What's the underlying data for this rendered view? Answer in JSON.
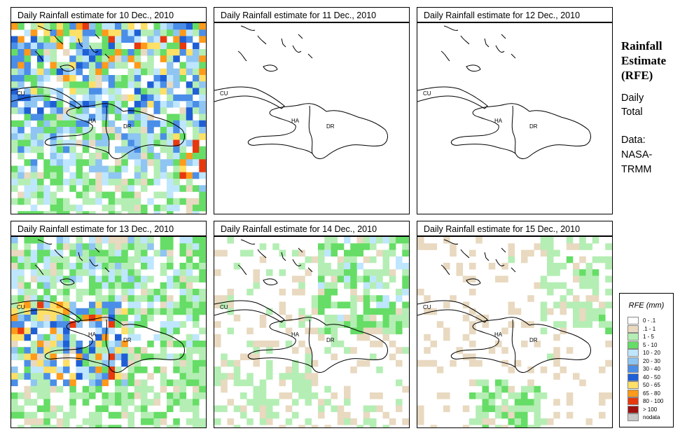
{
  "panels": [
    {
      "title": "Daily Rainfall estimate for  10 Dec., 2010",
      "intensity": 0.95,
      "seed": 11,
      "profile": "wet-north"
    },
    {
      "title": "Daily Rainfall estimate for  11 Dec., 2010",
      "intensity": 0.22,
      "seed": 23,
      "profile": "sparse-south"
    },
    {
      "title": "Daily Rainfall estimate for  12 Dec., 2010",
      "intensity": 0.08,
      "seed": 37,
      "profile": "sparse"
    },
    {
      "title": "Daily Rainfall estimate for  13 Dec., 2010",
      "intensity": 0.75,
      "seed": 41,
      "profile": "wet-west"
    },
    {
      "title": "Daily Rainfall estimate for  14 Dec., 2010",
      "intensity": 0.45,
      "seed": 53,
      "profile": "wet-northeast"
    },
    {
      "title": "Daily Rainfall estimate for  15 Dec., 2010",
      "intensity": 0.4,
      "seed": 67,
      "profile": "wet-south"
    }
  ],
  "labels": {
    "cuba": "CU",
    "haiti": "HA",
    "dr": "DR"
  },
  "side": {
    "title_lines": [
      "Rainfall",
      "Estimate",
      "(RFE)"
    ],
    "daily": "Daily",
    "total": "Total",
    "data": "Data:",
    "source1": "NASA-",
    "source2": "TRMM"
  },
  "legend": {
    "title": "RFE (mm)",
    "items": [
      {
        "label": "0 - .1",
        "color": "#ffffff"
      },
      {
        "label": ".1 - 1",
        "color": "#e8d9c0"
      },
      {
        "label": "1 - 5",
        "color": "#b4eeb4"
      },
      {
        "label": "5 - 10",
        "color": "#66dd66"
      },
      {
        "label": "10 - 20",
        "color": "#bfe6ff"
      },
      {
        "label": "20 - 30",
        "color": "#8ec5f2"
      },
      {
        "label": "30 - 40",
        "color": "#4a8ee8"
      },
      {
        "label": "40 - 50",
        "color": "#1f5fd6"
      },
      {
        "label": "50 - 65",
        "color": "#ffe066"
      },
      {
        "label": "65 - 80",
        "color": "#ff9a1a"
      },
      {
        "label": "80 - 100",
        "color": "#e8380e"
      },
      {
        "label": "> 100",
        "color": "#a01010"
      },
      {
        "label": "nodata",
        "color": "#c8c8c8"
      }
    ]
  }
}
